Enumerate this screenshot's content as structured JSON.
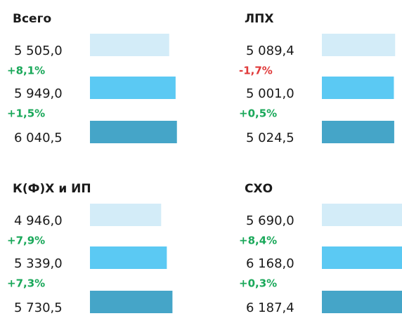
{
  "chart_data": [
    {
      "type": "bar",
      "title": "Всего",
      "values": [
        5505.0,
        5949.0,
        6040.5
      ],
      "value_labels": [
        "5 505,0",
        "5 949,0",
        "6 040,5"
      ],
      "changes": [
        8.1,
        1.5
      ],
      "change_labels": [
        "+8,1%",
        "+1,5%"
      ],
      "colors": [
        "#d3ecf8",
        "#5bc9f3",
        "#45a5c8"
      ],
      "up_color": "#1aa85a",
      "down_color": "#e03a3a",
      "xlim": [
        0,
        6200
      ]
    },
    {
      "type": "bar",
      "title": "ЛПХ",
      "values": [
        5089.4,
        5001.0,
        5024.5
      ],
      "value_labels": [
        "5 089,4",
        "5 001,0",
        "5 024,5"
      ],
      "changes": [
        -1.7,
        0.5
      ],
      "change_labels": [
        "-1,7%",
        "+0,5%"
      ],
      "colors": [
        "#d3ecf8",
        "#5bc9f3",
        "#45a5c8"
      ],
      "up_color": "#1aa85a",
      "down_color": "#e03a3a",
      "xlim": [
        0,
        6200
      ]
    },
    {
      "type": "bar",
      "title": "К(Ф)Х и ИП",
      "values": [
        4946.0,
        5339.0,
        5730.5
      ],
      "value_labels": [
        "4 946,0",
        "5 339,0",
        "5 730,5"
      ],
      "changes": [
        7.9,
        7.3
      ],
      "change_labels": [
        "+7,9%",
        "+7,3%"
      ],
      "colors": [
        "#d3ecf8",
        "#5bc9f3",
        "#45a5c8"
      ],
      "up_color": "#1aa85a",
      "down_color": "#e03a3a",
      "xlim": [
        0,
        6200
      ]
    },
    {
      "type": "bar",
      "title": "СХО",
      "values": [
        5690.0,
        6168.0,
        6187.4
      ],
      "value_labels": [
        "5 690,0",
        "6 168,0",
        "6 187,4"
      ],
      "changes": [
        8.4,
        0.3
      ],
      "change_labels": [
        "+8,4%",
        "+0,3%"
      ],
      "colors": [
        "#d3ecf8",
        "#5bc9f3",
        "#45a5c8"
      ],
      "up_color": "#1aa85a",
      "down_color": "#e03a3a",
      "xlim": [
        0,
        6200
      ]
    }
  ]
}
